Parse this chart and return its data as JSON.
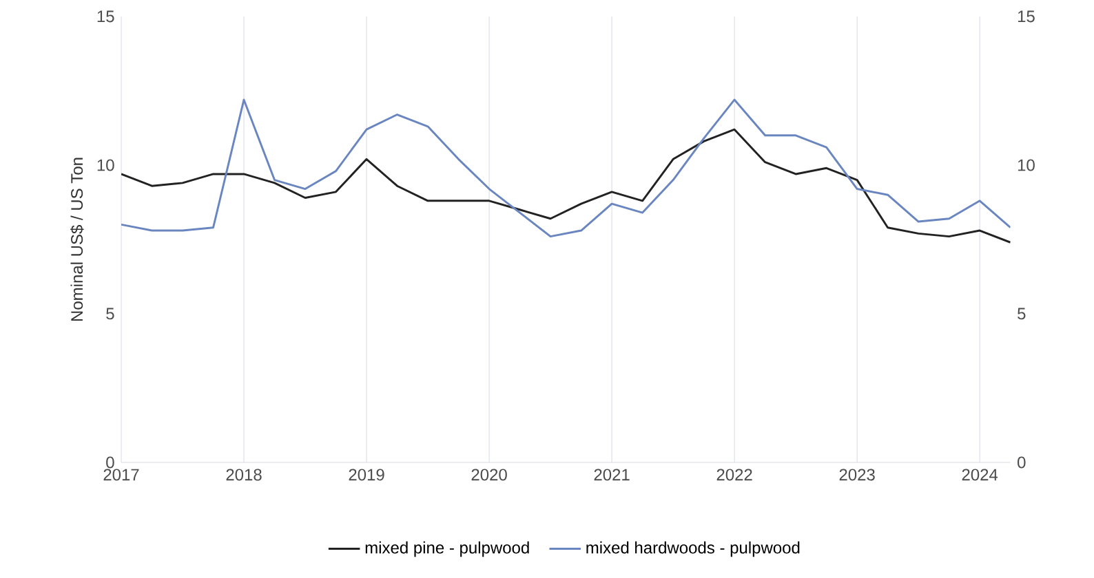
{
  "chart_data": {
    "type": "line",
    "ylabel": "Nominal US$ / US Ton",
    "x": [
      2017,
      2017.25,
      2017.5,
      2017.75,
      2018,
      2018.25,
      2018.5,
      2018.75,
      2019,
      2019.25,
      2019.5,
      2019.75,
      2020,
      2020.25,
      2020.5,
      2020.75,
      2021,
      2021.25,
      2021.5,
      2021.75,
      2022,
      2022.25,
      2022.5,
      2022.75,
      2023,
      2023.25,
      2023.5,
      2023.75,
      2024,
      2024.25
    ],
    "series": [
      {
        "name": "mixed pine - pulpwood",
        "color": "#222222",
        "values": [
          9.7,
          9.3,
          9.4,
          9.7,
          9.7,
          9.4,
          8.9,
          9.1,
          10.2,
          9.3,
          8.8,
          8.8,
          8.8,
          8.5,
          8.2,
          8.7,
          9.1,
          8.8,
          10.2,
          10.8,
          11.2,
          10.1,
          9.7,
          9.9,
          9.5,
          7.9,
          7.7,
          7.6,
          7.8,
          7.4
        ]
      },
      {
        "name": "mixed hardwoods - pulpwood",
        "color": "#6a86c0",
        "values": [
          8.0,
          7.8,
          7.8,
          7.9,
          12.2,
          9.5,
          9.2,
          9.8,
          11.2,
          11.7,
          11.3,
          10.2,
          9.2,
          8.4,
          7.6,
          7.8,
          8.7,
          8.4,
          9.5,
          10.9,
          12.2,
          11.0,
          11.0,
          10.6,
          9.2,
          9.0,
          8.1,
          8.2,
          8.8,
          7.9
        ]
      }
    ],
    "xlim": [
      2017,
      2024.25
    ],
    "xticks": [
      2017,
      2018,
      2019,
      2020,
      2021,
      2022,
      2023,
      2024
    ],
    "ylim": [
      0,
      15
    ],
    "yticks": [
      0,
      5,
      10,
      15
    ],
    "y2lim": [
      0,
      15
    ],
    "y2ticks": [
      0,
      5,
      10,
      15
    ],
    "grid": "x",
    "legend": "bottom",
    "marker": "none",
    "line_style": "solid"
  }
}
